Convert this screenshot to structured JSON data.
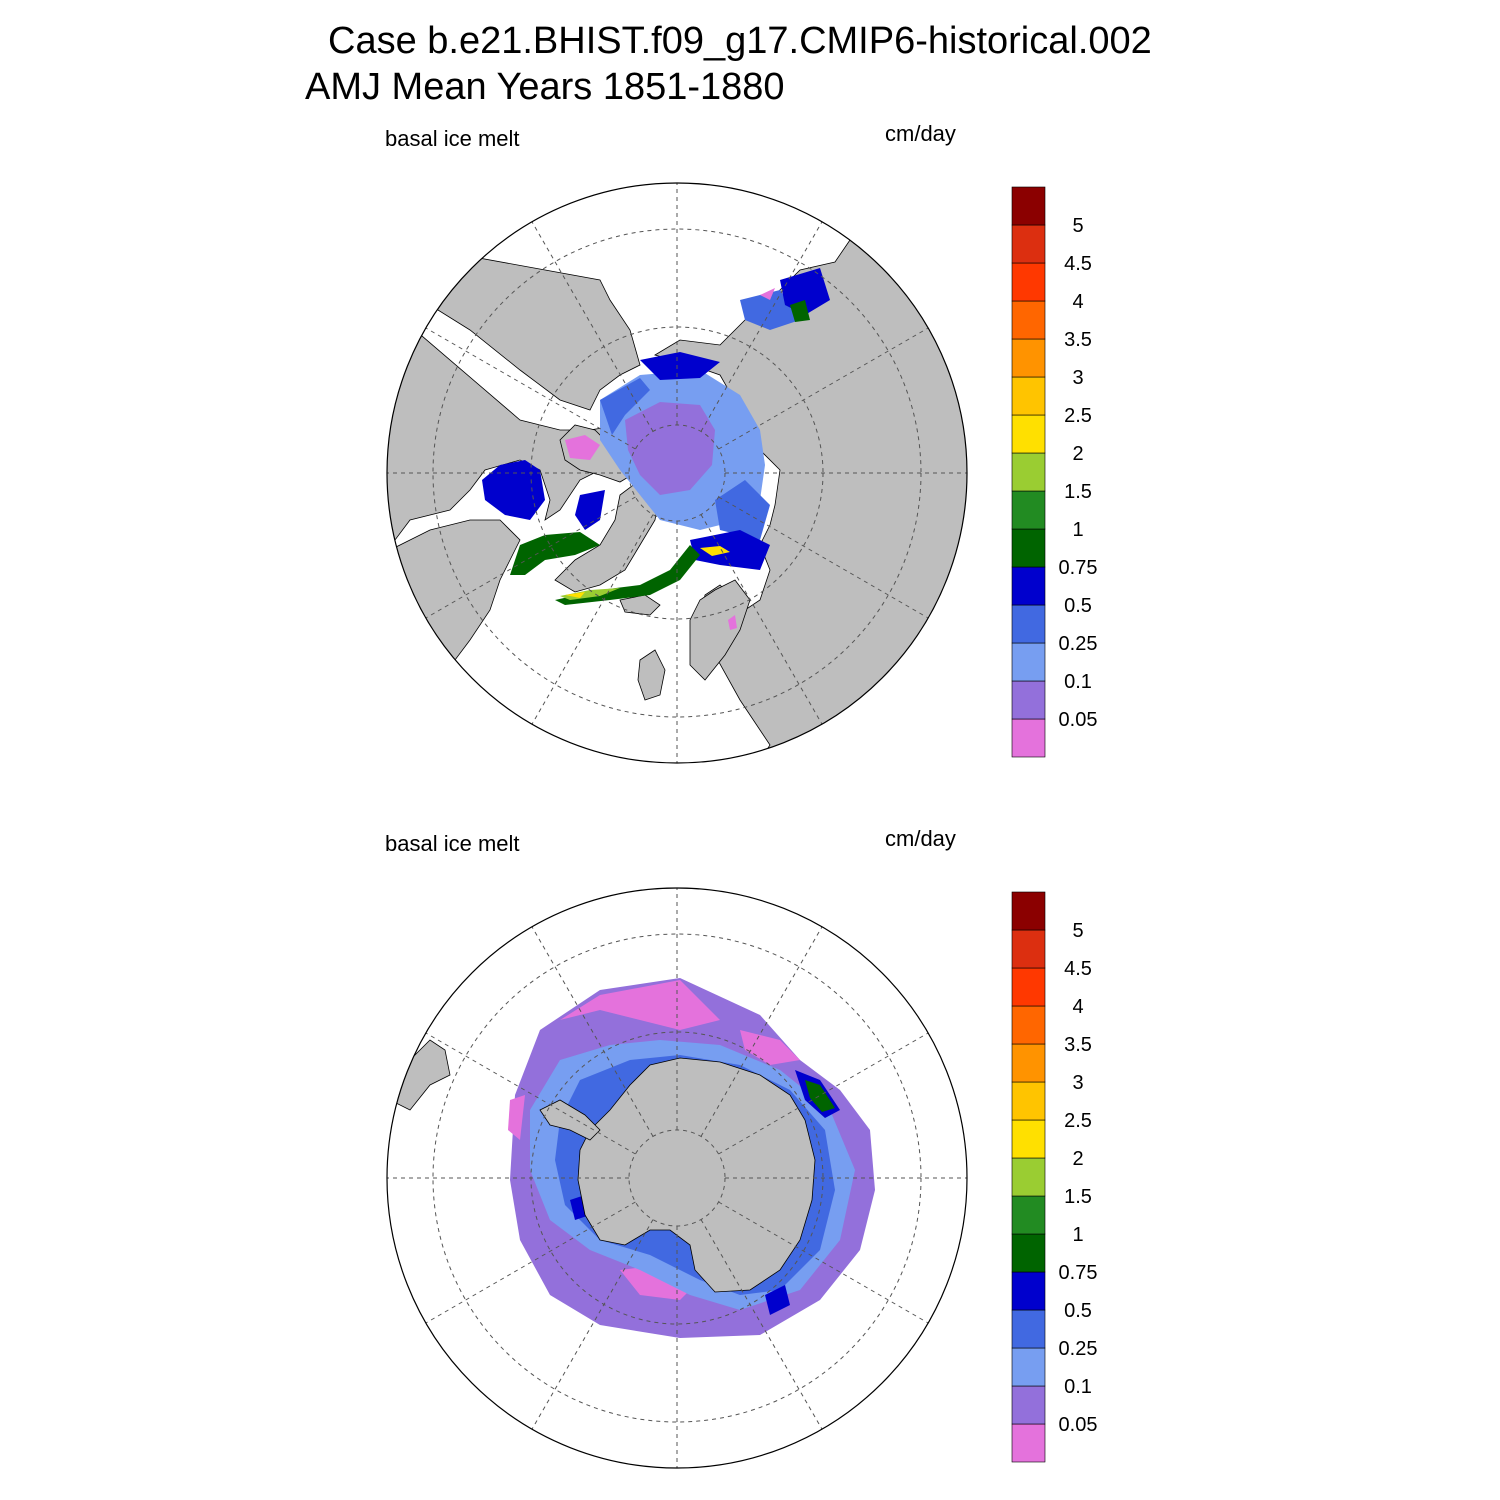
{
  "title": {
    "line1": "Case b.e21.BHIST.f09_g17.CMIP6-historical.002",
    "line2": "AMJ Mean   Years 1851-1880"
  },
  "panels": [
    {
      "variable_label": "basal ice melt",
      "units_label": "cm/day",
      "hemisphere": "north"
    },
    {
      "variable_label": "basal ice melt",
      "units_label": "cm/day",
      "hemisphere": "south"
    }
  ],
  "colorbar": {
    "levels": [
      "0.05",
      "0.1",
      "0.25",
      "0.5",
      "0.75",
      "1",
      "1.5",
      "2",
      "2.5",
      "3",
      "3.5",
      "4",
      "4.5",
      "5"
    ],
    "colors": [
      "#e472dc",
      "#9370db",
      "#779ef1",
      "#4169e1",
      "#0000cd",
      "#006400",
      "#228b22",
      "#9acd32",
      "#ffe000",
      "#ffc400",
      "#ff9300",
      "#ff6600",
      "#ff3800",
      "#dc2f10",
      "#8b0000"
    ]
  },
  "map_colors": {
    "land": "#bebebe",
    "ocean": "#ffffff",
    "grid": "#555555"
  }
}
